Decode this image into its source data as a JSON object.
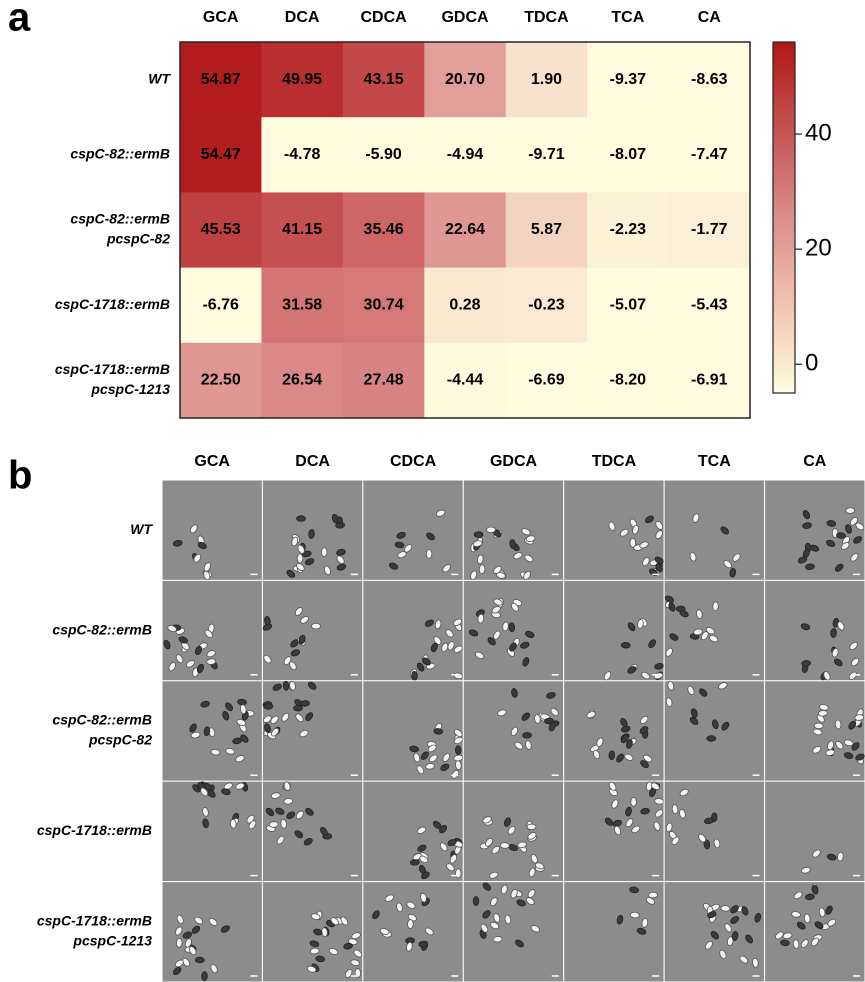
{
  "panel_labels": [
    "a",
    "b"
  ],
  "chart_data": {
    "type": "heatmap",
    "x": [
      "GCA",
      "DCA",
      "CDCA",
      "GDCA",
      "TDCA",
      "TCA",
      "CA"
    ],
    "y": [
      [
        "WT"
      ],
      [
        "cspC-82::ermB"
      ],
      [
        "cspC-82::ermB",
        "pcspC-82"
      ],
      [
        "cspC-1718::ermB"
      ],
      [
        "cspC-1718::ermB",
        "pcspC-1213"
      ]
    ],
    "values": [
      [
        54.87,
        49.95,
        43.15,
        20.7,
        1.9,
        -9.37,
        -8.63
      ],
      [
        54.47,
        -4.78,
        -5.9,
        -4.94,
        -9.71,
        -8.07,
        -7.47
      ],
      [
        45.53,
        41.15,
        35.46,
        22.64,
        5.87,
        -2.23,
        -1.77
      ],
      [
        -6.76,
        31.58,
        30.74,
        0.28,
        -0.23,
        -5.07,
        -5.43
      ],
      [
        22.5,
        26.54,
        27.48,
        -4.44,
        -6.69,
        -8.2,
        -6.91
      ]
    ],
    "value_labels": [
      [
        "54.87",
        "49.95",
        "43.15",
        "20.70",
        "1.90",
        "-9.37",
        "-8.63"
      ],
      [
        "54.47",
        "-4.78",
        "-5.90",
        "-4.94",
        "-9.71",
        "-8.07",
        "-7.47"
      ],
      [
        "45.53",
        "41.15",
        "35.46",
        "22.64",
        "5.87",
        "-2.23",
        "-1.77"
      ],
      [
        "-6.76",
        "31.58",
        "30.74",
        "0.28",
        "-0.23",
        "-5.07",
        "-5.43"
      ],
      [
        "22.50",
        "26.54",
        "27.48",
        "-4.44",
        "-6.69",
        "-8.20",
        "-6.91"
      ]
    ],
    "zlim": [
      -5,
      56
    ],
    "zticks": [
      0,
      20,
      40
    ],
    "colorscale": [
      "#fffce0",
      "#dc8c8c",
      "#b01818"
    ]
  },
  "micrographs": {
    "columns": [
      "GCA",
      "DCA",
      "CDCA",
      "GDCA",
      "TDCA",
      "TCA",
      "CA"
    ],
    "rows": [
      [
        "WT"
      ],
      [
        "cspC-82::ermB"
      ],
      [
        "cspC-82::ermB",
        "pcspC-82"
      ],
      [
        "cspC-1718::ermB"
      ],
      [
        "cspC-1718::ermB",
        "pcspC-1213"
      ]
    ]
  }
}
